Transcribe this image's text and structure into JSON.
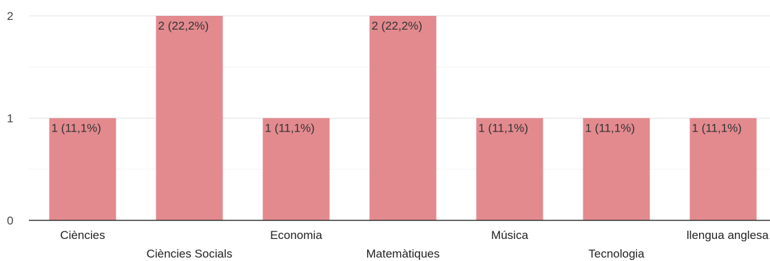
{
  "chart_data": {
    "type": "bar",
    "categories": [
      "Ciències",
      "Ciències Socials",
      "Economia",
      "Matemàtiques",
      "Música",
      "Tecnologia",
      "llengua anglesa"
    ],
    "values": [
      1,
      2,
      1,
      2,
      1,
      1,
      1
    ],
    "data_labels": [
      "1 (11,1%)",
      "2 (22,2%)",
      "1 (11,1%)",
      "2 (22,2%)",
      "1 (11,1%)",
      "1 (11,1%)",
      "1 (11,1%)"
    ],
    "y_ticks": [
      "0",
      "1",
      "2"
    ],
    "ylim": [
      0,
      2
    ],
    "grid": true,
    "bar_color": "#e38a8f",
    "title": "",
    "xlabel": "",
    "ylabel": ""
  }
}
